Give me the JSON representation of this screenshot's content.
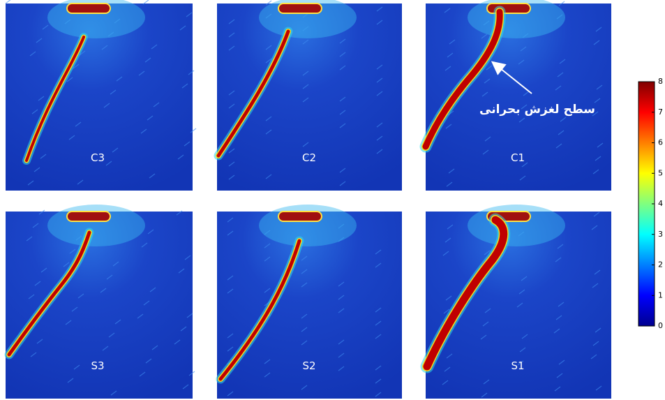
{
  "panels": [
    {
      "label": "C3"
    },
    {
      "label": "C2"
    },
    {
      "label": "C1"
    },
    {
      "label": "S3"
    },
    {
      "label": "S2"
    },
    {
      "label": "S1"
    }
  ],
  "annotation": "سطح لغزش بحرانی",
  "colorbar": {
    "range": [
      0,
      8
    ],
    "ticks": [
      0,
      1,
      2,
      3,
      4,
      5,
      6,
      7,
      8
    ]
  }
}
